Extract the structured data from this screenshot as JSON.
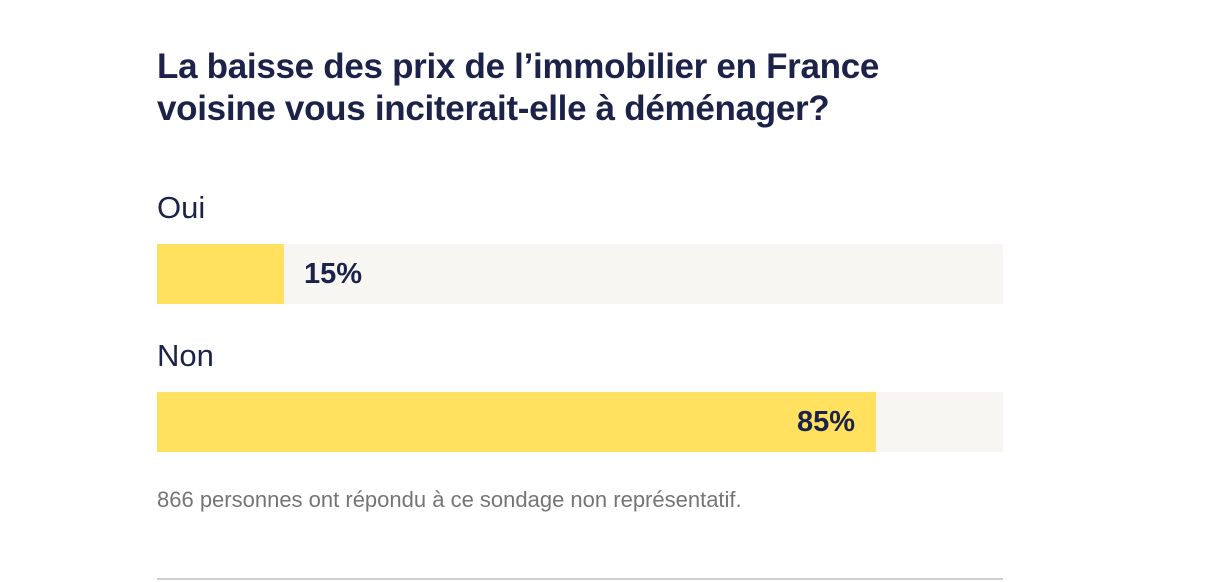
{
  "title": "La baisse des prix de l’immobilier en France voisine vous inciterait-elle à déménager?",
  "footnote": "866 personnes ont répondu à ce sondage non représentatif.",
  "colors": {
    "bar_fill": "#ffe15f",
    "bar_track": "#f7f6f2",
    "text": "#1c2248",
    "footnote": "#757575"
  },
  "chart_data": {
    "type": "bar",
    "orientation": "horizontal",
    "title": "La baisse des prix de l’immobilier en France voisine vous inciterait-elle à déménager?",
    "categories": [
      "Oui",
      "Non"
    ],
    "values": [
      15,
      85
    ],
    "value_labels": [
      "15%",
      "85%"
    ],
    "xlim": [
      0,
      100
    ],
    "grid": false
  }
}
